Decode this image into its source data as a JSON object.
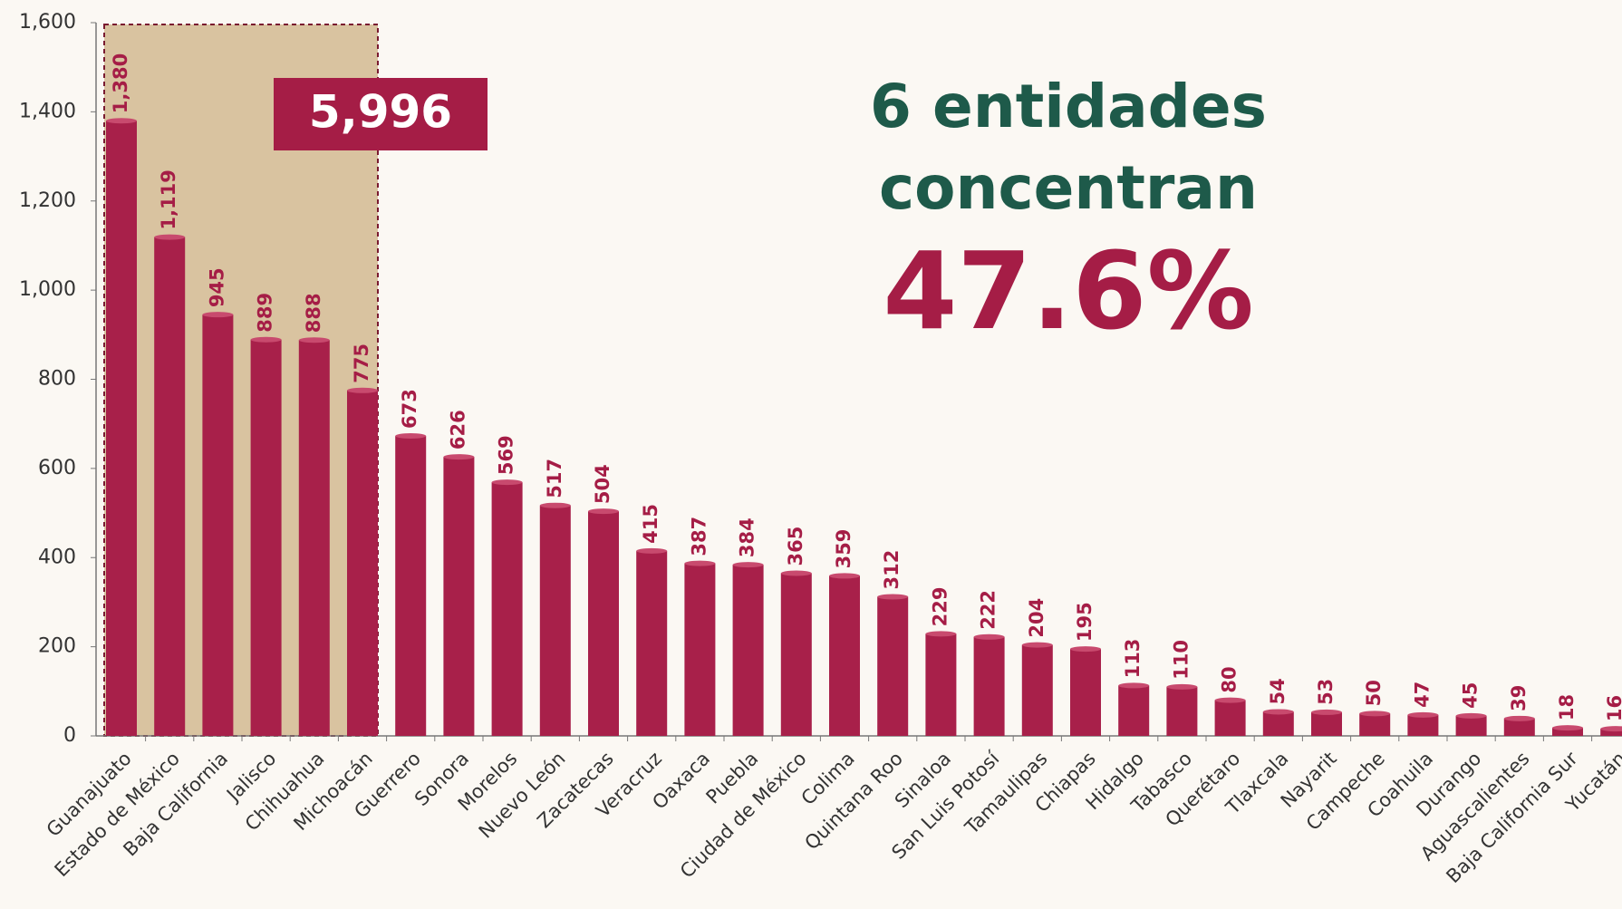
{
  "chart_data": {
    "type": "bar",
    "categories": [
      "Guanajuato",
      "Estado de México",
      "Baja California",
      "Jalisco",
      "Chihuahua",
      "Michoacán",
      "Guerrero",
      "Sonora",
      "Morelos",
      "Nuevo León",
      "Zacatecas",
      "Veracruz",
      "Oaxaca",
      "Puebla",
      "Ciudad de México",
      "Colima",
      "Quintana Roo",
      "Sinaloa",
      "San Luis Potosí",
      "Tamaulipas",
      "Chiapas",
      "Hidalgo",
      "Tabasco",
      "Querétaro",
      "Tlaxcala",
      "Nayarit",
      "Campeche",
      "Coahuila",
      "Durango",
      "Aguascalientes",
      "Baja California Sur",
      "Yucatán"
    ],
    "values": [
      1380,
      1119,
      945,
      889,
      888,
      775,
      673,
      626,
      569,
      517,
      504,
      415,
      387,
      384,
      365,
      359,
      312,
      229,
      222,
      204,
      195,
      113,
      110,
      80,
      54,
      53,
      50,
      47,
      45,
      39,
      18,
      16
    ],
    "value_labels": [
      "1,380",
      "1,119",
      "945",
      "889",
      "888",
      "775",
      "673",
      "626",
      "569",
      "517",
      "504",
      "415",
      "387",
      "384",
      "365",
      "359",
      "312",
      "229",
      "222",
      "204",
      "195",
      "113",
      "110",
      "80",
      "54",
      "53",
      "50",
      "47",
      "45",
      "39",
      "18",
      "16"
    ],
    "color": "#a8204a",
    "ylim": [
      0,
      1600
    ],
    "yticks": [
      0,
      200,
      400,
      600,
      800,
      {
        "value": 1000,
        "label": "1,000"
      },
      {
        "value": 1200,
        "label": "1,200"
      },
      {
        "value": 1400,
        "label": "1,400"
      },
      {
        "value": 1600,
        "label": "1,600"
      }
    ],
    "grid": false,
    "annotations": {
      "highlight_total": "5,996",
      "headline": [
        "6 entidades",
        "concentran"
      ],
      "share": "47.6%"
    }
  }
}
